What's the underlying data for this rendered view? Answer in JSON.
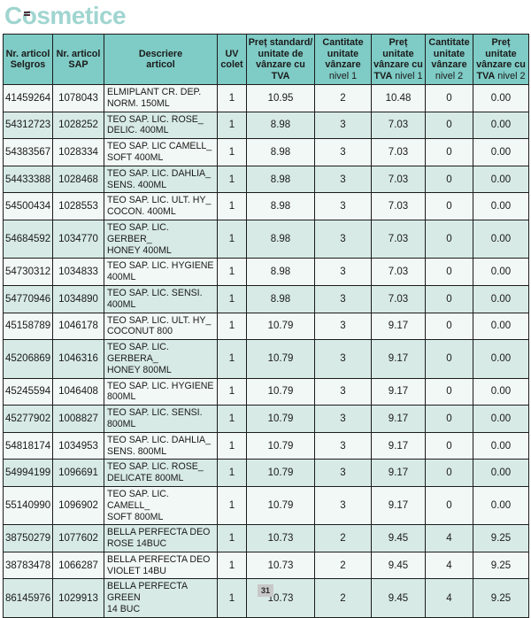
{
  "page": {
    "title": "Cosmetice",
    "page_number": "31"
  },
  "colors": {
    "title": "#a0d5d0",
    "header_bg": "#7fcbc5",
    "row_odd_bg": "#f1f8f6",
    "row_even_bg": "#d7eae6",
    "border": "#1c1c1c",
    "badge_bg": "#c8c8c8"
  },
  "table": {
    "headers": {
      "selgros": "Nr. articol\nSelgros",
      "sap": "Nr. articol\nSAP",
      "descriere": "Descriere\narticol",
      "uv": "UV\ncolet",
      "pret_standard": "Preț standard/\nunitate de\nvânzare cu\nTVA",
      "cantitate": "Cantitate\nunitate\nvânzare",
      "pret": "Preț\nunitate\nvânzare cu\nTVA",
      "nivel1": "nivel 1",
      "nivel2": "nivel 2"
    },
    "rows": [
      {
        "selgros": "41459264",
        "sap": "1078043",
        "descriere": "ELMIPLANT CR. DEP.\nNORM. 150ML",
        "uv": "1",
        "pret_standard": "10.95",
        "cantitate_nivel1": "2",
        "pret_nivel1": "10.48",
        "cantitate_nivel2": "0",
        "pret_nivel2": "0.00"
      },
      {
        "selgros": "54312723",
        "sap": "1028252",
        "descriere": "TEO SAP. LIC. ROSE_\nDELIC. 400ML",
        "uv": "1",
        "pret_standard": "8.98",
        "cantitate_nivel1": "3",
        "pret_nivel1": "7.03",
        "cantitate_nivel2": "0",
        "pret_nivel2": "0.00"
      },
      {
        "selgros": "54383567",
        "sap": "1028334",
        "descriere": "TEO SAP. LIC CAMELL_\nSOFT 400ML",
        "uv": "1",
        "pret_standard": "8.98",
        "cantitate_nivel1": "3",
        "pret_nivel1": "7.03",
        "cantitate_nivel2": "0",
        "pret_nivel2": "0.00"
      },
      {
        "selgros": "54433388",
        "sap": "1028468",
        "descriere": "TEO SAP. LIC. DAHLIA_\nSENS. 400ML",
        "uv": "1",
        "pret_standard": "8.98",
        "cantitate_nivel1": "3",
        "pret_nivel1": "7.03",
        "cantitate_nivel2": "0",
        "pret_nivel2": "0.00"
      },
      {
        "selgros": "54500434",
        "sap": "1028553",
        "descriere": "TEO SAP. LIC. ULT. HY_\nCOCON. 400ML",
        "uv": "1",
        "pret_standard": "8.98",
        "cantitate_nivel1": "3",
        "pret_nivel1": "7.03",
        "cantitate_nivel2": "0",
        "pret_nivel2": "0.00"
      },
      {
        "selgros": "54684592",
        "sap": "1034770",
        "descriere": "TEO SAP. LIC. GERBER_\nHONEY 400ML",
        "uv": "1",
        "pret_standard": "8.98",
        "cantitate_nivel1": "3",
        "pret_nivel1": "7.03",
        "cantitate_nivel2": "0",
        "pret_nivel2": "0.00"
      },
      {
        "selgros": "54730312",
        "sap": "1034833",
        "descriere": "TEO SAP. LIC. HYGIENE\n400ML",
        "uv": "1",
        "pret_standard": "8.98",
        "cantitate_nivel1": "3",
        "pret_nivel1": "7.03",
        "cantitate_nivel2": "0",
        "pret_nivel2": "0.00"
      },
      {
        "selgros": "54770946",
        "sap": "1034890",
        "descriere": "TEO SAP. LIC. SENSI.\n400ML",
        "uv": "1",
        "pret_standard": "8.98",
        "cantitate_nivel1": "3",
        "pret_nivel1": "7.03",
        "cantitate_nivel2": "0",
        "pret_nivel2": "0.00"
      },
      {
        "selgros": "45158789",
        "sap": "1046178",
        "descriere": "TEO SAP. LIC. ULT. HY_\nCOCONUT 800",
        "uv": "1",
        "pret_standard": "10.79",
        "cantitate_nivel1": "3",
        "pret_nivel1": "9.17",
        "cantitate_nivel2": "0",
        "pret_nivel2": "0.00"
      },
      {
        "selgros": "45206869",
        "sap": "1046316",
        "descriere": "TEO SAP. LIC. GERBERA_\nHONEY 800ML",
        "uv": "1",
        "pret_standard": "10.79",
        "cantitate_nivel1": "3",
        "pret_nivel1": "9.17",
        "cantitate_nivel2": "0",
        "pret_nivel2": "0.00"
      },
      {
        "selgros": "45245594",
        "sap": "1046408",
        "descriere": "TEO SAP. LIC. HYGIENE\n800ML",
        "uv": "1",
        "pret_standard": "10.79",
        "cantitate_nivel1": "3",
        "pret_nivel1": "9.17",
        "cantitate_nivel2": "0",
        "pret_nivel2": "0.00"
      },
      {
        "selgros": "45277902",
        "sap": "1008827",
        "descriere": "TEO SAP. LIC. SENSI.\n800ML",
        "uv": "1",
        "pret_standard": "10.79",
        "cantitate_nivel1": "3",
        "pret_nivel1": "9.17",
        "cantitate_nivel2": "0",
        "pret_nivel2": "0.00"
      },
      {
        "selgros": "54818174",
        "sap": "1034953",
        "descriere": "TEO SAP. LIC. DAHLIA_\nSENS. 800ML",
        "uv": "1",
        "pret_standard": "10.79",
        "cantitate_nivel1": "3",
        "pret_nivel1": "9.17",
        "cantitate_nivel2": "0",
        "pret_nivel2": "0.00"
      },
      {
        "selgros": "54994199",
        "sap": "1096691",
        "descriere": "TEO SAP. LIC. ROSE_\nDELICATE 800ML",
        "uv": "1",
        "pret_standard": "10.79",
        "cantitate_nivel1": "3",
        "pret_nivel1": "9.17",
        "cantitate_nivel2": "0",
        "pret_nivel2": "0.00"
      },
      {
        "selgros": "55140990",
        "sap": "1096902",
        "descriere": "TEO SAP. LIC. CAMELL_\nSOFT 800ML",
        "uv": "1",
        "pret_standard": "10.79",
        "cantitate_nivel1": "3",
        "pret_nivel1": "9.17",
        "cantitate_nivel2": "0",
        "pret_nivel2": "0.00"
      },
      {
        "selgros": "38750279",
        "sap": "1077602",
        "descriere": "BELLA PERFECTA DEO\nROSE 14BUC",
        "uv": "1",
        "pret_standard": "10.73",
        "cantitate_nivel1": "2",
        "pret_nivel1": "9.45",
        "cantitate_nivel2": "4",
        "pret_nivel2": "9.25"
      },
      {
        "selgros": "38783478",
        "sap": "1066287",
        "descriere": "BELLA PERFECTA DEO\nVIOLET 14BU",
        "uv": "1",
        "pret_standard": "10.73",
        "cantitate_nivel1": "2",
        "pret_nivel1": "9.45",
        "cantitate_nivel2": "4",
        "pret_nivel2": "9.25"
      },
      {
        "selgros": "86145976",
        "sap": "1029913",
        "descriere": "BELLA PERFECTA GREEN\n14 BUC",
        "uv": "1",
        "pret_standard": "10.73",
        "cantitate_nivel1": "2",
        "pret_nivel1": "9.45",
        "cantitate_nivel2": "4",
        "pret_nivel2": "9.25"
      }
    ]
  }
}
